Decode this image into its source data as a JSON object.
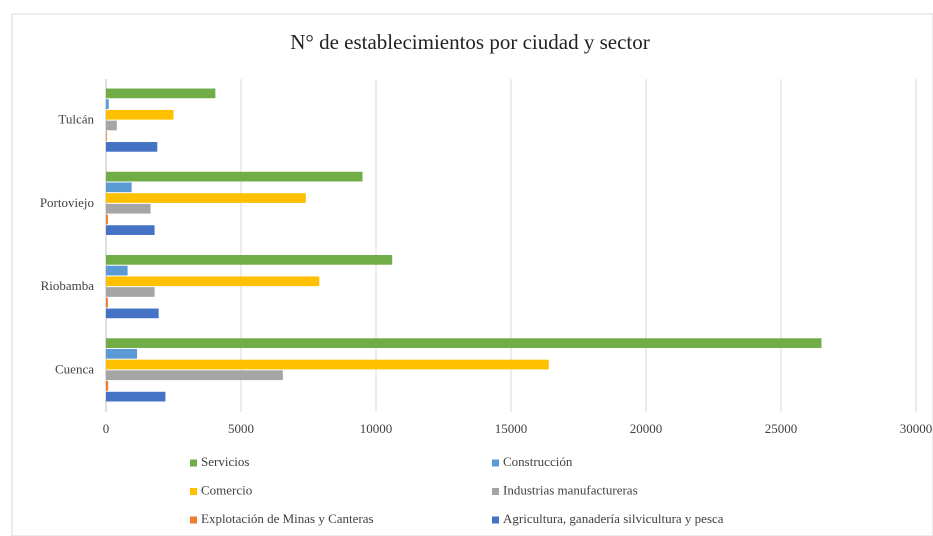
{
  "chart_data": {
    "type": "bar",
    "orientation": "horizontal",
    "title": "N° de establecimientos  por ciudad y sector",
    "categories": [
      "Tulcán",
      "Portoviejo",
      "Riobamba",
      "Cuenca"
    ],
    "series": [
      {
        "name": "Servicios",
        "color": "#70ad47",
        "values": [
          4050,
          9500,
          10600,
          26500
        ]
      },
      {
        "name": "Construcción",
        "color": "#5b9bd5",
        "values": [
          100,
          950,
          800,
          1150
        ]
      },
      {
        "name": "Comercio",
        "color": "#ffc000",
        "values": [
          2500,
          7400,
          7900,
          16400
        ]
      },
      {
        "name": "Industrias manufactureras",
        "color": "#a5a5a5",
        "values": [
          400,
          1650,
          1800,
          6550
        ]
      },
      {
        "name": "Explotación de Minas y Canteras",
        "color": "#ed7d31",
        "values": [
          30,
          70,
          70,
          80
        ]
      },
      {
        "name": "Agricultura, ganadería silvicultura y pesca",
        "color": "#4472c4",
        "values": [
          1900,
          1800,
          1950,
          2200
        ]
      }
    ],
    "xlim": [
      0,
      30000
    ],
    "xticks": [
      0,
      5000,
      10000,
      15000,
      20000,
      25000,
      30000
    ],
    "grid": true
  }
}
